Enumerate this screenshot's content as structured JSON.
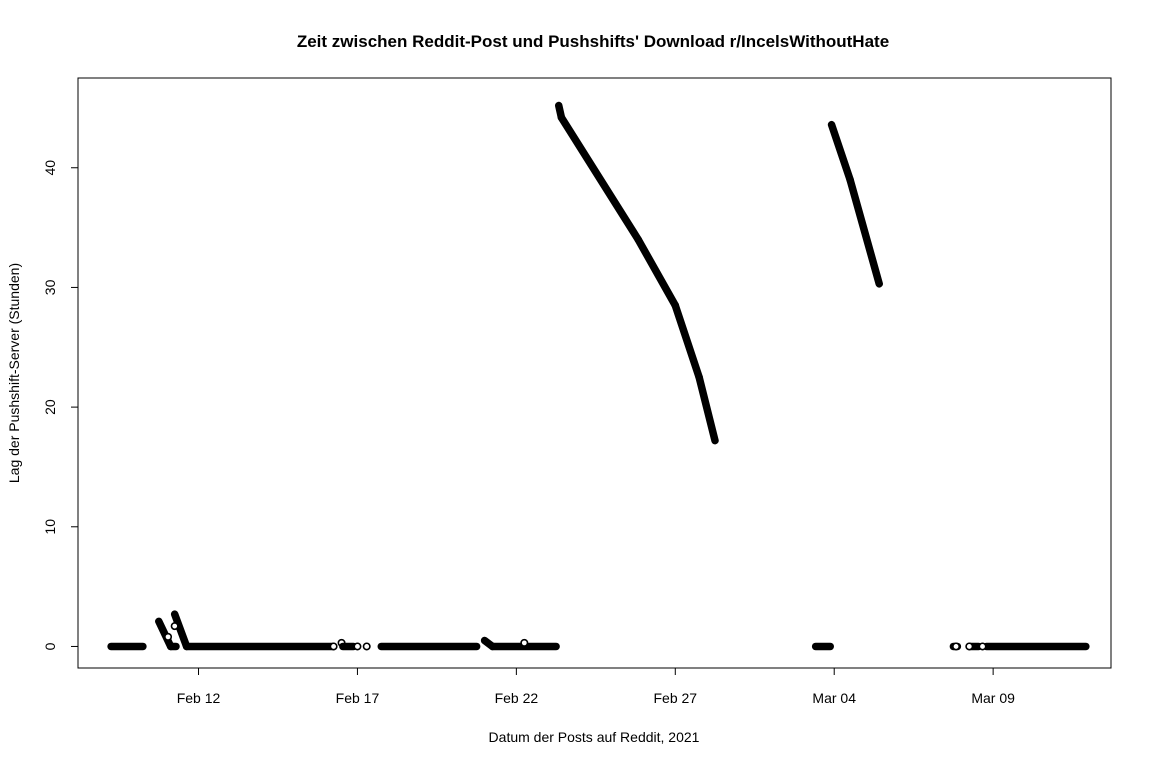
{
  "chart_data": {
    "type": "scatter",
    "title": "Zeit zwischen Reddit-Post und Pushshifts' Download r/IncelsWithoutHate",
    "xlabel": "Datum der Posts auf Reddit, 2021",
    "ylabel": "Lag der Pushshift-Server (Stunden)",
    "xlim": [
      "2021-02-08T05:00",
      "2021-03-12T17:00"
    ],
    "ylim": [
      -1.8,
      47.5
    ],
    "x_ticks": [
      {
        "date": "2021-02-12",
        "label": "Feb 12"
      },
      {
        "date": "2021-02-17",
        "label": "Feb 17"
      },
      {
        "date": "2021-02-22",
        "label": "Feb 22"
      },
      {
        "date": "2021-02-27",
        "label": "Feb 27"
      },
      {
        "date": "2021-03-04",
        "label": "Mar 04"
      },
      {
        "date": "2021-03-09",
        "label": "Mar 09"
      }
    ],
    "y_ticks": [
      0,
      10,
      20,
      30,
      40
    ],
    "grid": false,
    "marker": "open-circle",
    "color": "#000000",
    "segments": [
      {
        "x": [
          "2021-02-09T06:00",
          "2021-02-10T06:00"
        ],
        "y": [
          0,
          0
        ]
      },
      {
        "x": [
          "2021-02-10T18:00",
          "2021-02-11T03:00"
        ],
        "y": [
          2.1,
          0
        ]
      },
      {
        "x": [
          "2021-02-11T03:00",
          "2021-02-11T07:00"
        ],
        "y": [
          0,
          0
        ]
      },
      {
        "x": [
          "2021-02-11T06:00",
          "2021-02-11T15:00"
        ],
        "y": [
          2.7,
          0
        ]
      },
      {
        "x": [
          "2021-02-11T15:00",
          "2021-02-16T06:00"
        ],
        "y": [
          0,
          0
        ]
      },
      {
        "x": [
          "2021-02-16T12:00",
          "2021-02-16T12:00"
        ],
        "y": [
          0.3,
          0.3
        ]
      },
      {
        "x": [
          "2021-02-16T13:00",
          "2021-02-16T21:00"
        ],
        "y": [
          0,
          0
        ]
      },
      {
        "x": [
          "2021-02-17T18:00",
          "2021-02-20T18:00"
        ],
        "y": [
          0,
          0
        ]
      },
      {
        "x": [
          "2021-02-21T00:00",
          "2021-02-21T06:00"
        ],
        "y": [
          0.5,
          0
        ]
      },
      {
        "x": [
          "2021-02-21T06:00",
          "2021-02-23T06:00"
        ],
        "y": [
          0,
          0
        ]
      },
      {
        "x": [
          "2021-02-23T08:00",
          "2021-02-23T10:00"
        ],
        "y": [
          45.2,
          44.2
        ]
      },
      {
        "x": [
          "2021-02-23T10:00",
          "2021-02-25T20:00"
        ],
        "y": [
          44.2,
          34
        ]
      },
      {
        "x": [
          "2021-02-25T20:00",
          "2021-02-27T00:00"
        ],
        "y": [
          34,
          28.5
        ]
      },
      {
        "x": [
          "2021-02-27T00:00",
          "2021-02-27T18:00"
        ],
        "y": [
          28.5,
          22.5
        ]
      },
      {
        "x": [
          "2021-02-27T18:00",
          "2021-02-28T06:00"
        ],
        "y": [
          22.5,
          17.2
        ]
      },
      {
        "x": [
          "2021-03-03T10:00",
          "2021-03-03T21:00"
        ],
        "y": [
          0,
          0
        ]
      },
      {
        "x": [
          "2021-03-03T22:00",
          "2021-03-04T12:00"
        ],
        "y": [
          43.6,
          39
        ]
      },
      {
        "x": [
          "2021-03-04T12:00",
          "2021-03-05T10:00"
        ],
        "y": [
          39,
          30.3
        ]
      },
      {
        "x": [
          "2021-03-07T18:00",
          "2021-03-07T21:00"
        ],
        "y": [
          0,
          0
        ]
      },
      {
        "x": [
          "2021-03-08T06:00",
          "2021-03-08T13:00"
        ],
        "y": [
          0,
          0
        ]
      },
      {
        "x": [
          "2021-03-08T19:00",
          "2021-03-11T22:00"
        ],
        "y": [
          0,
          0
        ]
      }
    ],
    "points": [
      {
        "x": "2021-02-11T01:00",
        "y": 0.8
      },
      {
        "x": "2021-02-11T06:00",
        "y": 1.7
      },
      {
        "x": "2021-02-16T06:00",
        "y": 0
      },
      {
        "x": "2021-02-17T00:00",
        "y": 0
      },
      {
        "x": "2021-02-17T07:00",
        "y": 0
      },
      {
        "x": "2021-02-22T06:00",
        "y": 0.3
      },
      {
        "x": "2021-03-07T20:00",
        "y": 0
      },
      {
        "x": "2021-03-08T06:00",
        "y": 0
      },
      {
        "x": "2021-03-08T16:00",
        "y": 0
      }
    ]
  }
}
